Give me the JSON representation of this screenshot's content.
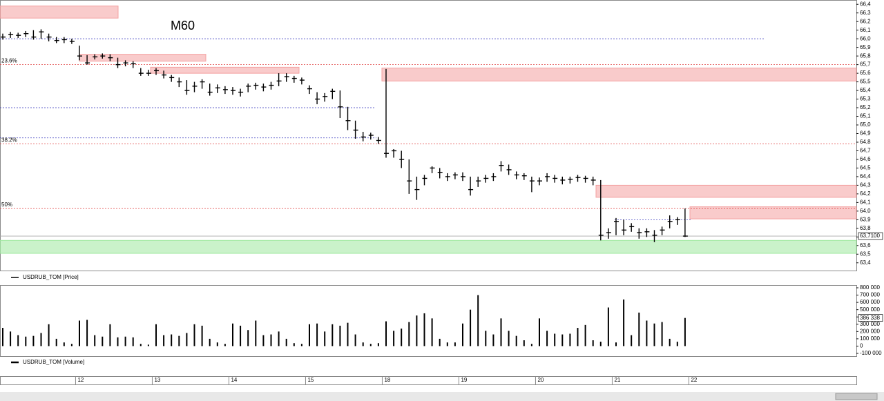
{
  "annotation": "M60",
  "x_axis": {
    "labels": [
      "12",
      "13",
      "14",
      "15",
      "18",
      "19",
      "20",
      "21",
      "22"
    ]
  },
  "chart_data": [
    {
      "type": "ohlc",
      "legend": "USDRUB_TOM [Price]",
      "color": "#000000",
      "close": [
        66.02,
        66.05,
        66.04,
        66.06,
        66.02,
        66.08,
        66.02,
        65.98,
        65.99,
        65.97,
        65.8,
        65.72,
        65.79,
        65.8,
        65.78,
        65.7,
        65.72,
        65.71,
        65.6,
        65.6,
        65.63,
        65.58,
        65.55,
        65.5,
        65.4,
        65.45,
        65.5,
        65.38,
        65.43,
        65.41,
        65.4,
        65.38,
        65.45,
        65.46,
        65.44,
        65.46,
        65.51,
        65.56,
        65.54,
        65.52,
        65.42,
        65.3,
        65.33,
        65.39,
        65.21,
        65.05,
        64.94,
        64.86,
        64.88,
        64.82,
        64.67,
        64.7,
        64.6,
        64.35,
        64.25,
        64.38,
        64.5,
        64.45,
        64.4,
        64.42,
        64.4,
        64.25,
        64.35,
        64.38,
        64.4,
        64.53,
        64.48,
        64.42,
        64.41,
        64.35,
        64.35,
        64.4,
        64.38,
        64.36,
        64.37,
        64.39,
        64.38,
        64.36,
        63.72,
        63.75,
        63.88,
        63.78,
        63.82,
        63.75,
        63.76,
        63.72,
        63.78,
        63.88,
        63.9,
        63.71
      ],
      "high": [
        66.06,
        66.08,
        66.07,
        66.09,
        66.1,
        66.11,
        66.06,
        66.02,
        66.02,
        66.0,
        65.92,
        65.81,
        65.82,
        65.83,
        65.82,
        65.78,
        65.75,
        65.74,
        65.66,
        65.64,
        65.66,
        65.63,
        65.58,
        65.55,
        65.52,
        65.5,
        65.53,
        65.48,
        65.47,
        65.45,
        65.44,
        65.42,
        65.48,
        65.49,
        65.48,
        65.5,
        65.6,
        65.6,
        65.57,
        65.55,
        65.46,
        65.38,
        65.37,
        65.42,
        65.4,
        65.21,
        65.05,
        64.92,
        64.91,
        64.86,
        65.65,
        64.72,
        64.7,
        64.6,
        64.4,
        64.42,
        64.52,
        64.5,
        64.44,
        64.45,
        64.45,
        64.4,
        64.4,
        64.42,
        64.44,
        64.58,
        64.54,
        64.46,
        64.44,
        64.4,
        64.39,
        64.44,
        64.42,
        64.4,
        64.4,
        64.42,
        64.41,
        64.4,
        64.36,
        63.8,
        63.92,
        63.9,
        63.86,
        63.8,
        63.8,
        63.78,
        63.82,
        63.95,
        63.93,
        64.03
      ],
      "low": [
        65.99,
        66.01,
        66.01,
        66.02,
        65.99,
        66.0,
        65.97,
        65.95,
        65.95,
        65.94,
        65.75,
        65.7,
        65.76,
        65.77,
        65.74,
        65.66,
        65.68,
        65.66,
        65.57,
        65.57,
        65.58,
        65.54,
        65.5,
        65.44,
        65.35,
        65.38,
        65.42,
        65.34,
        65.37,
        65.36,
        65.35,
        65.33,
        65.38,
        65.41,
        65.39,
        65.41,
        65.45,
        65.5,
        65.49,
        65.47,
        65.36,
        65.24,
        65.27,
        65.3,
        65.08,
        64.94,
        64.84,
        64.81,
        64.83,
        64.78,
        64.62,
        64.62,
        64.5,
        64.2,
        64.13,
        64.3,
        64.44,
        64.38,
        64.35,
        64.37,
        64.35,
        64.18,
        64.28,
        64.33,
        64.35,
        64.46,
        64.42,
        64.37,
        64.36,
        64.22,
        64.3,
        64.34,
        64.33,
        64.31,
        64.32,
        64.34,
        64.33,
        64.3,
        63.66,
        63.68,
        63.72,
        63.72,
        63.76,
        63.68,
        63.7,
        63.64,
        63.72,
        63.8,
        63.84,
        63.7
      ],
      "last": {
        "value": 63.71,
        "label": "63,7100"
      },
      "ylim": [
        63.31,
        66.45
      ],
      "yticks": [
        {
          "value": 63.4,
          "label": "63,4"
        },
        {
          "value": 63.5,
          "label": "63,5"
        },
        {
          "value": 63.6,
          "label": "63,6"
        },
        {
          "value": 63.7,
          "label": "63,7"
        },
        {
          "value": 63.8,
          "label": "63,8"
        },
        {
          "value": 63.9,
          "label": "63,9"
        },
        {
          "value": 64.0,
          "label": "64,0"
        },
        {
          "value": 64.1,
          "label": "64,1"
        },
        {
          "value": 64.2,
          "label": "64,2"
        },
        {
          "value": 64.3,
          "label": "64,3"
        },
        {
          "value": 64.4,
          "label": "64,4"
        },
        {
          "value": 64.5,
          "label": "64,5"
        },
        {
          "value": 64.6,
          "label": "64,6"
        },
        {
          "value": 64.7,
          "label": "64,7"
        },
        {
          "value": 64.8,
          "label": "64,8"
        },
        {
          "value": 64.9,
          "label": "64,9"
        },
        {
          "value": 65.0,
          "label": "65,0"
        },
        {
          "value": 65.1,
          "label": "65,1"
        },
        {
          "value": 65.2,
          "label": "65,2"
        },
        {
          "value": 65.3,
          "label": "65,3"
        },
        {
          "value": 65.4,
          "label": "65,4"
        },
        {
          "value": 65.5,
          "label": "65,5"
        },
        {
          "value": 65.6,
          "label": "65,6"
        },
        {
          "value": 65.7,
          "label": "65,7"
        },
        {
          "value": 65.8,
          "label": "65,8"
        },
        {
          "value": 65.9,
          "label": "65,9"
        },
        {
          "value": 66.0,
          "label": "66,0"
        },
        {
          "value": 66.1,
          "label": "66,1"
        },
        {
          "value": 66.2,
          "label": "66,2"
        },
        {
          "value": 66.3,
          "label": "66,3"
        },
        {
          "value": 66.4,
          "label": "66,4"
        }
      ],
      "zones": [
        {
          "top": 66.38,
          "bottom": 66.24,
          "color": "#f4a0a0"
        },
        {
          "top": 65.82,
          "bottom": 65.74,
          "color": "#f4a0a0"
        },
        {
          "top": 65.67,
          "bottom": 65.6,
          "color": "#f4a0a0"
        },
        {
          "top": 65.66,
          "bottom": 65.51,
          "color": "#f4a0a0"
        },
        {
          "top": 64.3,
          "bottom": 64.16,
          "color": "#f4a0a0"
        },
        {
          "top": 64.05,
          "bottom": 63.91,
          "color": "#f4a0a0"
        },
        {
          "top": 63.66,
          "bottom": 63.51,
          "color": "#9fe89f"
        }
      ],
      "levels": [
        {
          "value": 66.0,
          "color": "#4040c0"
        },
        {
          "value": 65.2,
          "color": "#4040c0"
        },
        {
          "value": 64.85,
          "color": "#4040c0"
        },
        {
          "value": 63.9,
          "color": "#4040c0"
        }
      ],
      "fib_levels": [
        {
          "value": 65.7,
          "label": "23.6%"
        },
        {
          "value": 64.78,
          "label": "38.2%"
        },
        {
          "value": 64.03,
          "label": "50%"
        }
      ]
    },
    {
      "type": "bar",
      "legend": "USDRUB_TOM [Volume]",
      "color": "#000000",
      "values": [
        250000,
        200000,
        150000,
        130000,
        140000,
        180000,
        300000,
        100000,
        50000,
        30000,
        350000,
        360000,
        150000,
        130000,
        300000,
        120000,
        130000,
        120000,
        30000,
        20000,
        300000,
        150000,
        160000,
        140000,
        180000,
        300000,
        280000,
        100000,
        50000,
        30000,
        310000,
        280000,
        220000,
        350000,
        150000,
        160000,
        200000,
        100000,
        40000,
        30000,
        300000,
        310000,
        200000,
        300000,
        280000,
        320000,
        160000,
        50000,
        30000,
        40000,
        340000,
        210000,
        240000,
        330000,
        420000,
        450000,
        380000,
        100000,
        50000,
        50000,
        310000,
        500000,
        700000,
        210000,
        160000,
        380000,
        210000,
        140000,
        80000,
        30000,
        380000,
        210000,
        170000,
        160000,
        170000,
        250000,
        290000,
        80000,
        60000,
        530000,
        50000,
        640000,
        150000,
        460000,
        350000,
        310000,
        330000,
        100000,
        60000,
        386338
      ],
      "last": {
        "value": 386338,
        "label": "386 338"
      },
      "ylim": [
        -138000,
        838000
      ],
      "yticks": [
        {
          "value": -100000,
          "label": "-100 000"
        },
        {
          "value": 0,
          "label": "0"
        },
        {
          "value": 100000,
          "label": "100 000"
        },
        {
          "value": 200000,
          "label": "200 000"
        },
        {
          "value": 300000,
          "label": "300 000"
        },
        {
          "value": 400000,
          "label": "400 000"
        },
        {
          "value": 500000,
          "label": "500 000"
        },
        {
          "value": 600000,
          "label": "600 000"
        },
        {
          "value": 700000,
          "label": "700 000"
        },
        {
          "value": 800000,
          "label": "800 000"
        }
      ]
    }
  ]
}
